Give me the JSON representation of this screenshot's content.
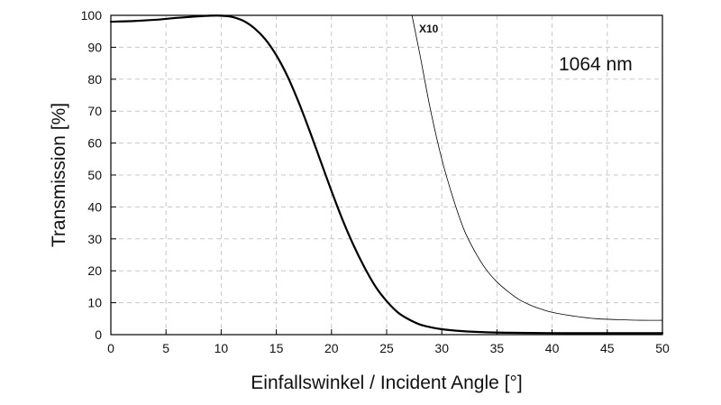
{
  "chart_data": {
    "type": "line",
    "title": "",
    "xlabel": "Einfallswinkel / Incident Angle [°]",
    "ylabel": "Transmission [%]",
    "xlim": [
      0,
      50
    ],
    "ylim": [
      0,
      100
    ],
    "xticks": [
      0,
      5,
      10,
      15,
      20,
      25,
      30,
      35,
      40,
      45,
      50
    ],
    "yticks": [
      0,
      10,
      20,
      30,
      40,
      50,
      60,
      70,
      80,
      90,
      100
    ],
    "grid": true,
    "annotations": {
      "wavelength": "1064 nm",
      "magnified_curve_label": "X10"
    },
    "series": [
      {
        "x": [
          0,
          2,
          4,
          6,
          8,
          9,
          10,
          11,
          12,
          13,
          14,
          15,
          16,
          17,
          18,
          19,
          20,
          21,
          22,
          23,
          24,
          25,
          26,
          27,
          28,
          29,
          30,
          32,
          34,
          36,
          38,
          40,
          42,
          44,
          46,
          48,
          50
        ],
        "y": [
          98.0,
          98.2,
          98.6,
          99.2,
          99.7,
          99.9,
          99.9,
          99.5,
          98.3,
          96.0,
          92.5,
          87.5,
          81.0,
          73.0,
          64.0,
          54.5,
          45.0,
          36.0,
          28.0,
          21.0,
          15.0,
          10.5,
          7.0,
          4.8,
          3.2,
          2.3,
          1.7,
          1.05,
          0.75,
          0.6,
          0.52,
          0.48,
          0.46,
          0.45,
          0.45,
          0.45,
          0.45
        ],
        "color": "#000000",
        "stroke_width": 2.2
      },
      {
        "x": [
          27.3,
          28,
          29,
          30,
          31,
          32,
          33,
          34,
          35,
          36,
          37,
          38,
          39,
          40,
          42,
          44,
          46,
          48,
          50
        ],
        "y": [
          100,
          88,
          70,
          55,
          43,
          33,
          26,
          20.5,
          16.5,
          13.5,
          11.0,
          9.3,
          8.0,
          7.0,
          5.8,
          5.0,
          4.7,
          4.5,
          4.5
        ],
        "color": "#000000",
        "stroke_width": 0.8
      }
    ]
  }
}
